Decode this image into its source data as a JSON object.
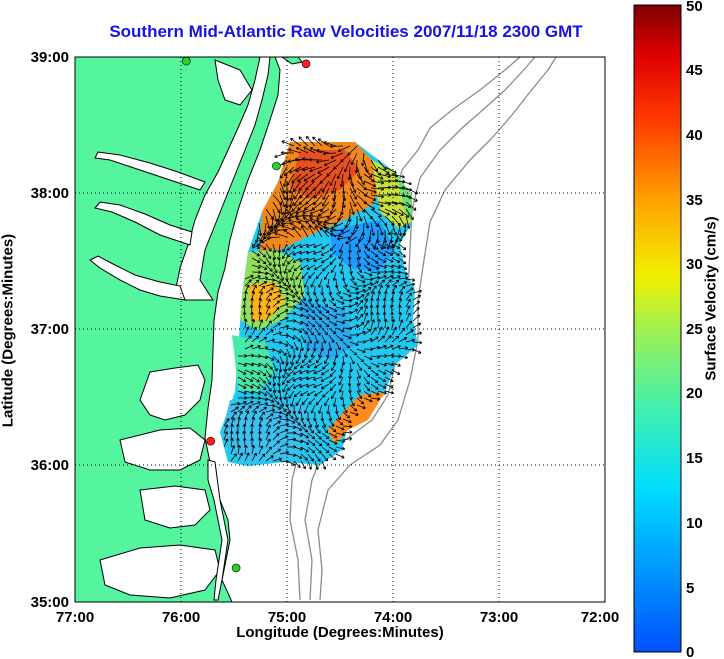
{
  "title": "Southern Mid-Atlantic Raw Velocities 2007/11/18 2300 GMT",
  "xlabel": "Longitude (Degrees:Minutes)",
  "ylabel": "Latitude (Degrees:Minutes)",
  "colorbar_label": "Surface Velocity (cm/s)",
  "x_ticks": [
    "77:00",
    "76:00",
    "75:00",
    "74:00",
    "73:00",
    "72:00"
  ],
  "y_ticks": [
    "39:00",
    "38:00",
    "37:00",
    "36:00",
    "35:00"
  ],
  "colorbar_ticks": [
    "0",
    "5",
    "10",
    "15",
    "20",
    "25",
    "30",
    "35",
    "40",
    "45",
    "50"
  ],
  "colors": {
    "land": "#55f5a0",
    "coast": "#000000",
    "bathymetry": "#8c8c8c",
    "title": "#1414e6",
    "station_red": "#ff1e1e",
    "station_green": "#28d228"
  },
  "chart_data": {
    "type": "heatmap",
    "xlim": [
      -77,
      -72
    ],
    "ylim": [
      35,
      39
    ],
    "colorbar_range": [
      0,
      50
    ],
    "grid": true,
    "stations": [
      {
        "lon": -74.82,
        "lat": 38.95,
        "color": "red"
      },
      {
        "lon": -75.95,
        "lat": 38.97,
        "color": "green"
      },
      {
        "lon": -75.1,
        "lat": 38.2,
        "color": "green"
      },
      {
        "lon": -75.72,
        "lat": 36.18,
        "color": "red"
      },
      {
        "lon": -75.48,
        "lat": 35.25,
        "color": "green"
      }
    ]
  }
}
